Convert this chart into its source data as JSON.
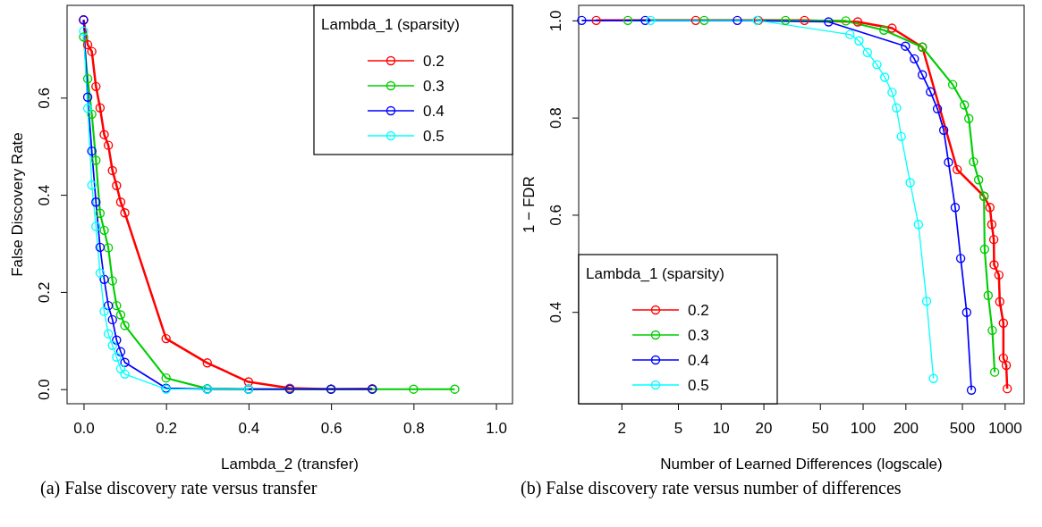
{
  "chart_data": [
    {
      "type": "line",
      "xlabel": "Lambda_2 (transfer)",
      "ylabel": "False Discovery Rate",
      "legend_title": "Lambda_1 (sparsity)",
      "legend": "top right",
      "marker": "circle",
      "line_style": "solid",
      "grid": false,
      "xlim": [
        -0.04,
        1.04
      ],
      "ylim": [
        -0.03,
        0.79
      ],
      "xticks": [
        {
          "value": 0,
          "label": "0.0"
        },
        {
          "value": 0.2,
          "label": "0.2"
        },
        {
          "value": 0.4,
          "label": "0.4"
        },
        {
          "value": 0.6,
          "label": "0.6"
        },
        {
          "value": 0.8,
          "label": "0.8"
        },
        {
          "value": 1,
          "label": "1.0"
        }
      ],
      "yticks": [
        {
          "value": 0,
          "label": "0.0"
        },
        {
          "value": 0.2,
          "label": "0.2"
        },
        {
          "value": 0.4,
          "label": "0.4"
        },
        {
          "value": 0.6,
          "label": "0.6"
        }
      ],
      "series": [
        {
          "name": "0.2",
          "color": "#ff0000",
          "x": [
            0,
            0.01,
            0.02,
            0.03,
            0.04,
            0.05,
            0.06,
            0.07,
            0.08,
            0.09,
            0.1,
            0.2,
            0.3,
            0.4,
            0.5,
            0.6,
            0.7
          ],
          "values": [
            0.76,
            0.709,
            0.695,
            0.623,
            0.579,
            0.524,
            0.502,
            0.45,
            0.419,
            0.385,
            0.363,
            0.104,
            0.054,
            0.015,
            0.002,
            0,
            0.001
          ]
        },
        {
          "name": "0.3",
          "color": "#00cd00",
          "x": [
            0,
            0.01,
            0.02,
            0.03,
            0.04,
            0.05,
            0.06,
            0.07,
            0.08,
            0.09,
            0.1,
            0.2,
            0.3,
            0.4,
            0.5,
            0.6,
            0.7,
            0.8,
            0.9
          ],
          "values": [
            0.725,
            0.639,
            0.566,
            0.471,
            0.362,
            0.327,
            0.291,
            0.223,
            0.172,
            0.153,
            0.131,
            0.023,
            0.001,
            0,
            0,
            0,
            0,
            0,
            0
          ]
        },
        {
          "name": "0.4",
          "color": "#0000ff",
          "x": [
            0,
            0.01,
            0.02,
            0.03,
            0.04,
            0.05,
            0.06,
            0.07,
            0.08,
            0.09,
            0.1,
            0.2,
            0.3,
            0.4,
            0.5,
            0.6,
            0.7
          ],
          "values": [
            0.76,
            0.601,
            0.49,
            0.385,
            0.292,
            0.226,
            0.172,
            0.143,
            0.101,
            0.077,
            0.055,
            0.002,
            0,
            0,
            0,
            0,
            0
          ]
        },
        {
          "name": "0.5",
          "color": "#00ffff",
          "x": [
            0,
            0.01,
            0.02,
            0.03,
            0.04,
            0.05,
            0.06,
            0.07,
            0.08,
            0.09,
            0.1,
            0.2,
            0.3,
            0.4
          ],
          "values": [
            0.737,
            0.578,
            0.42,
            0.335,
            0.239,
            0.16,
            0.114,
            0.09,
            0.066,
            0.042,
            0.031,
            0,
            0,
            0
          ]
        }
      ],
      "annotations": [
        "(a) False discovery rate versus transfer"
      ]
    },
    {
      "type": "line",
      "xlabel": "Number of Learned Differences (logscale)",
      "ylabel": "1 − FDR",
      "legend_title": "Lambda_1 (sparsity)",
      "legend": "bottom left",
      "marker": "circle",
      "line_style": "solid",
      "grid": false,
      "log": "x",
      "xlim": [
        1,
        1370
      ],
      "ylim": [
        0.211,
        1.031
      ],
      "xticks": [
        2,
        5,
        10,
        20,
        50,
        100,
        200,
        500,
        1000
      ],
      "yticks": [
        {
          "value": 0.4,
          "label": "0.4"
        },
        {
          "value": 0.6,
          "label": "0.6"
        },
        {
          "value": 0.8,
          "label": "0.8"
        },
        {
          "value": 1,
          "label": "1.0"
        }
      ],
      "series": [
        {
          "name": "0.2",
          "color": "#ff0000",
          "x": [
            1.33,
            6.67,
            18.4,
            38.9,
            92.3,
            161,
            263,
            463,
            715,
            787,
            811,
            838,
            842,
            910,
            923,
            979,
            979,
            1026,
            1042
          ],
          "values": [
            1.0,
            1.0,
            1.0,
            1.0,
            0.997,
            0.984,
            0.945,
            0.693,
            0.638,
            0.615,
            0.58,
            0.549,
            0.497,
            0.476,
            0.421,
            0.377,
            0.305,
            0.29,
            0.242
          ]
        },
        {
          "name": "0.3",
          "color": "#00cd00",
          "x": [
            2.22,
            7.65,
            28.6,
            76.1,
            141,
            263,
            430,
            520,
            559,
            603,
            655,
            715,
            722,
            765,
            818,
            850
          ],
          "values": [
            1.0,
            1.0,
            1.0,
            0.999,
            0.98,
            0.945,
            0.868,
            0.826,
            0.798,
            0.709,
            0.672,
            0.638,
            0.529,
            0.434,
            0.362,
            0.276
          ]
        },
        {
          "name": "0.4",
          "color": "#0000ff",
          "x": [
            1.05,
            2.94,
            13.1,
            57.5,
            200,
            231,
            263,
            300,
            336,
            372,
            402,
            448,
            490,
            540,
            583
          ],
          "values": [
            1.0,
            1.0,
            1.0,
            0.997,
            0.947,
            0.921,
            0.888,
            0.853,
            0.818,
            0.774,
            0.708,
            0.615,
            0.51,
            0.399,
            0.239
          ]
        },
        {
          "name": "0.5",
          "color": "#00ffff",
          "x": [
            3.21,
            18.1,
            81.4,
            94.2,
            108,
            126,
            143,
            161,
            173,
            187,
            216,
            247,
            282,
            315
          ],
          "values": [
            1.0,
            1.0,
            0.971,
            0.958,
            0.934,
            0.909,
            0.883,
            0.852,
            0.82,
            0.761,
            0.666,
            0.58,
            0.422,
            0.263
          ]
        }
      ],
      "annotations": [
        "(b) False discovery rate versus number of differences"
      ]
    }
  ]
}
